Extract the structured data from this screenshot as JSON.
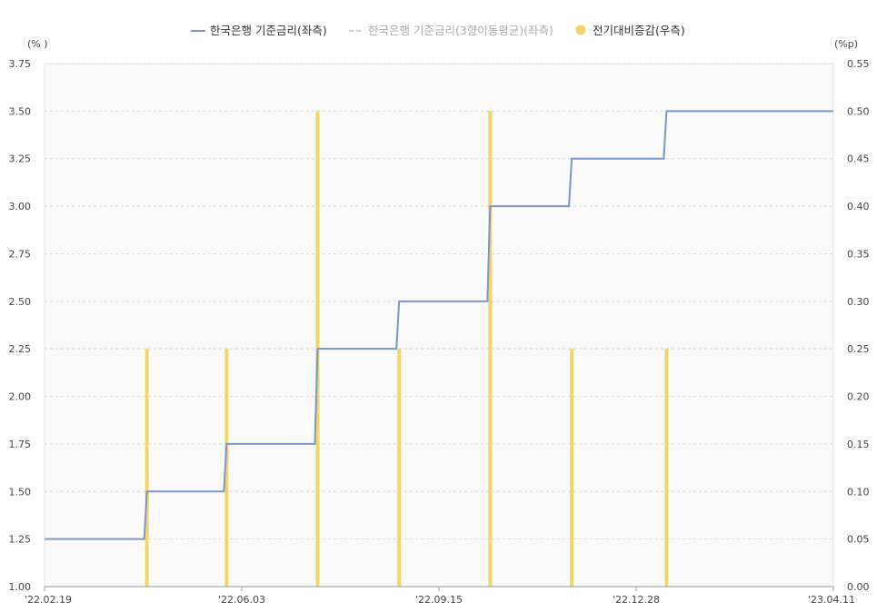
{
  "chart_data": {
    "type": "line",
    "x_dates": [
      "'22.02.19",
      "'22.04.14",
      "'22.05.26",
      "'22.07.13",
      "'22.08.25",
      "'22.10.12",
      "'22.11.24",
      "'23.01.13",
      "'23.04.11"
    ],
    "x_tick_labels": [
      "'22.02.19",
      "'22.06.03",
      "'22.09.15",
      "'22.12.28",
      "'23.04.11"
    ],
    "series": [
      {
        "name": "한국은행 기준금리(좌측)",
        "type": "step",
        "axis": "left",
        "color": "#7b96cc",
        "values": [
          1.25,
          1.5,
          1.75,
          2.25,
          2.5,
          3.0,
          3.25,
          3.5,
          3.5
        ]
      },
      {
        "name": "한국은행 기준금리(3향이동평균)(좌측)",
        "type": "dashed-line",
        "axis": "left",
        "color": "#cccccc",
        "hidden": true,
        "values": []
      },
      {
        "name": "전기대비증감(우측)",
        "type": "bar",
        "axis": "right",
        "color": "#f5d46e",
        "values": [
          0,
          0.25,
          0.25,
          0.5,
          0.25,
          0.5,
          0.25,
          0.25,
          0
        ]
      }
    ],
    "y_left": {
      "unit": "(% )",
      "min": 1.0,
      "max": 3.75,
      "ticks": [
        "1.00",
        "1.25",
        "1.50",
        "1.75",
        "2.00",
        "2.25",
        "2.50",
        "2.75",
        "3.00",
        "3.25",
        "3.50",
        "3.75"
      ]
    },
    "y_right": {
      "unit": "(%p)",
      "min": 0.0,
      "max": 0.55,
      "ticks": [
        "0.00",
        "0.05",
        "0.10",
        "0.15",
        "0.20",
        "0.25",
        "0.30",
        "0.35",
        "0.40",
        "0.45",
        "0.50",
        "0.55"
      ]
    },
    "grid": true,
    "legend_position": "top-center"
  }
}
